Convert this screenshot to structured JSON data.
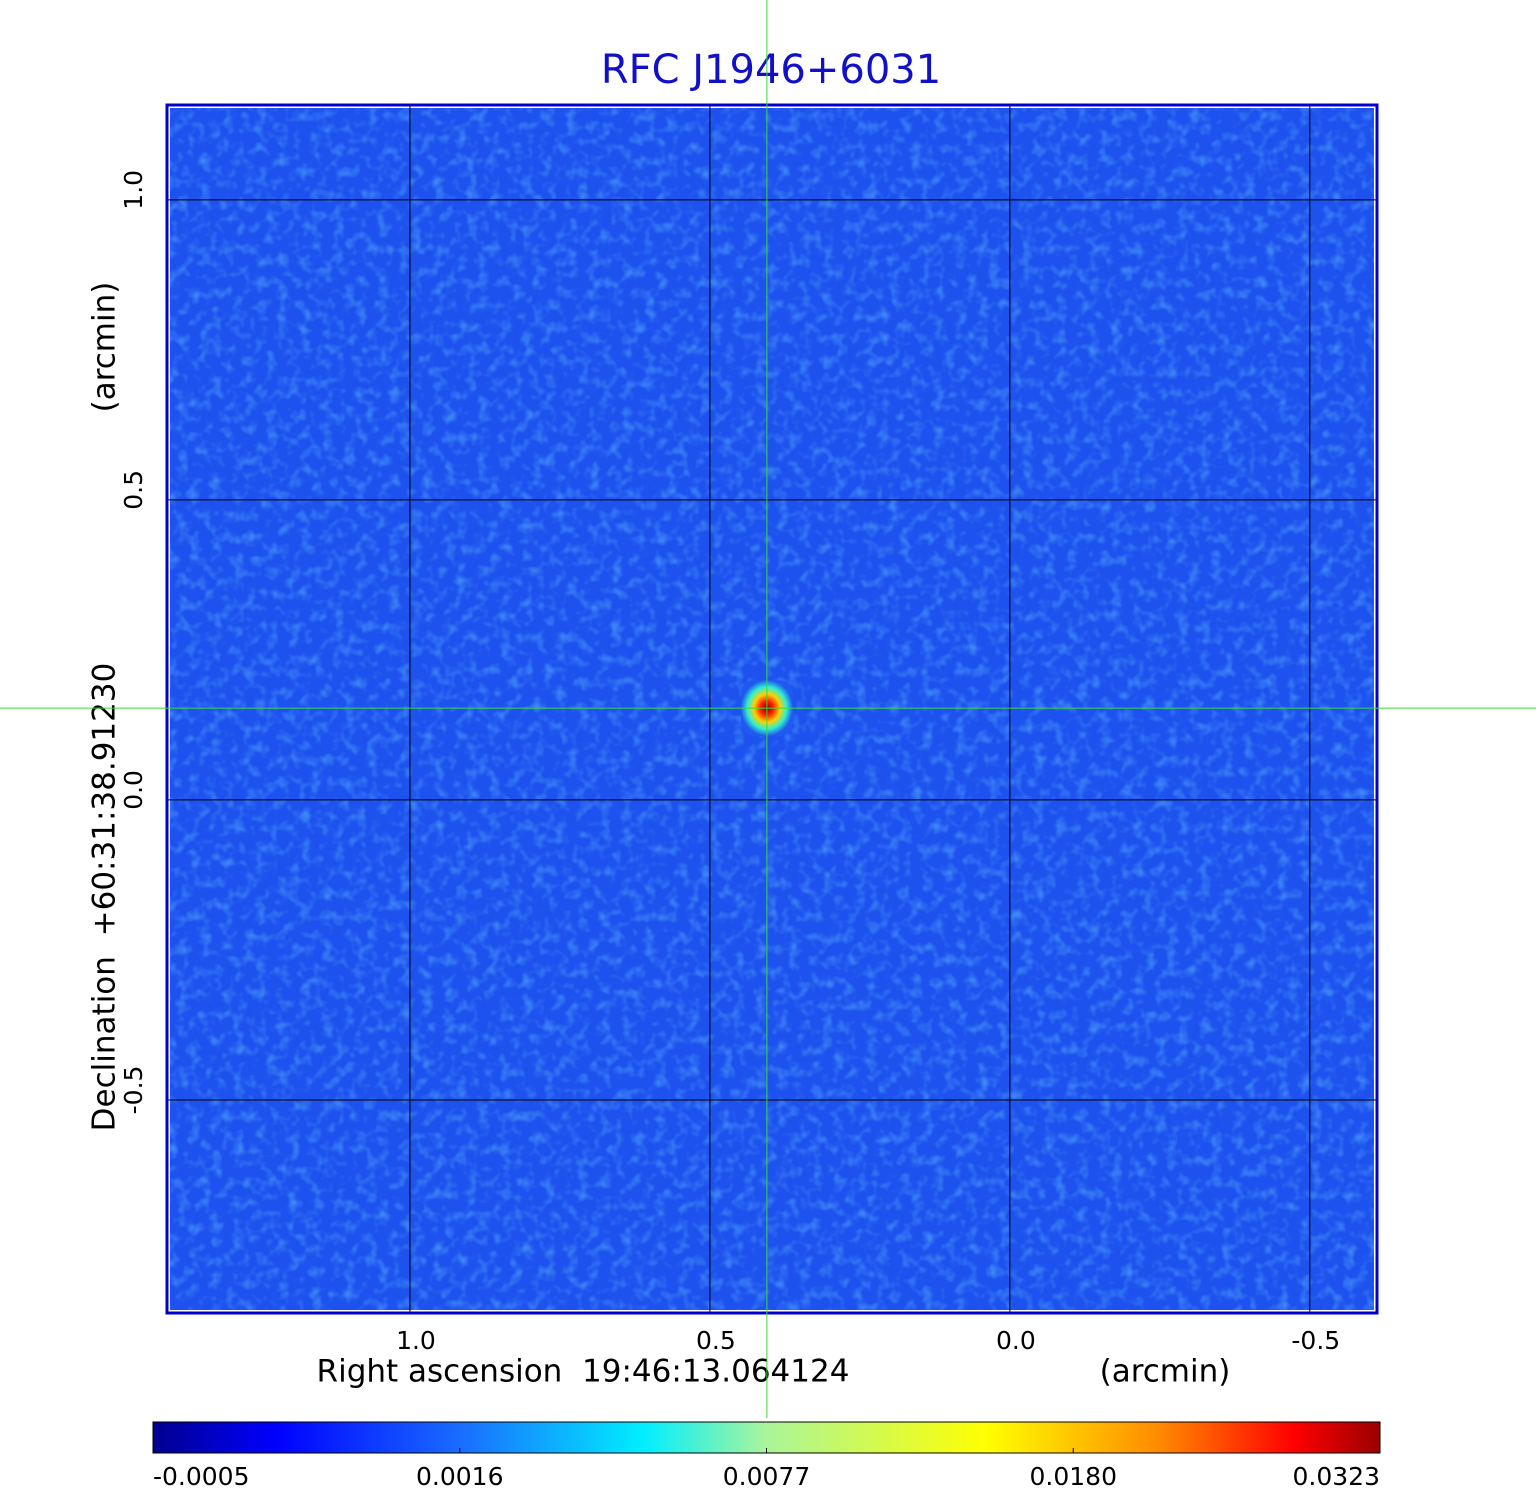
{
  "chart_data": {
    "type": "image",
    "title": "RFC J1946+6031",
    "x_label": "Right ascension  19:46:13.064124",
    "x_unit": "(arcmin)",
    "y_label": "Declination  +60:31:38.91230",
    "y_unit": "(arcmin)",
    "xlim": [
      1.405,
      -0.612
    ],
    "ylim": [
      -0.855,
      1.158
    ],
    "xticks": [
      {
        "value": 1,
        "label": "1.0"
      },
      {
        "value": 0.5,
        "label": "0.5"
      },
      {
        "value": 0,
        "label": "0.0"
      },
      {
        "value": -0.5,
        "label": "-0.5"
      }
    ],
    "yticks": [
      {
        "value": 1,
        "label": "1.0"
      },
      {
        "value": 0.5,
        "label": "0.5"
      },
      {
        "value": 0,
        "label": "0.0"
      },
      {
        "value": -0.5,
        "label": "-0.5"
      }
    ],
    "grid": true,
    "source": {
      "x": 0.405,
      "y": 0.153,
      "peak": 0.0323
    },
    "colormap": "jet",
    "colorbar": {
      "ticks": [
        -0.0005,
        0.0016,
        0.0077,
        {
          "value": 0.018,
          "label": "0.0180"
        },
        0.0323
      ]
    }
  }
}
